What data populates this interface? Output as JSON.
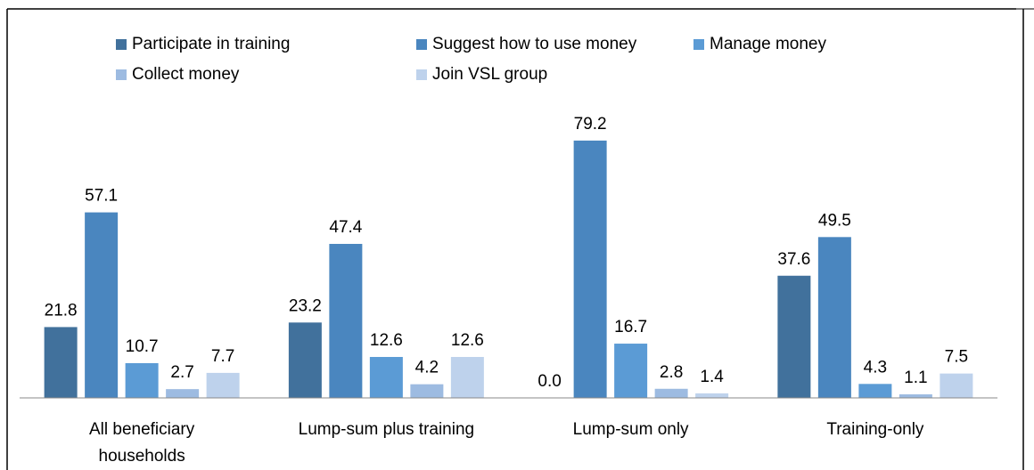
{
  "chart_data": {
    "type": "bar",
    "categories": [
      "All beneficiary households",
      "Lump-sum plus training",
      "Lump-sum only",
      "Training-only"
    ],
    "series": [
      {
        "name": "Participate in training",
        "color": "#41719c",
        "values": [
          21.8,
          23.2,
          0,
          37.6
        ],
        "value_labels": [
          "21.8",
          "23.2",
          "0.0",
          "37.6"
        ]
      },
      {
        "name": "Suggest how to use money",
        "color": "#4a86bf",
        "values": [
          57.1,
          47.4,
          79.2,
          49.5
        ],
        "value_labels": [
          "57.1",
          "47.4",
          "79.2",
          "49.5"
        ]
      },
      {
        "name": "Manage money",
        "color": "#5b9bd5",
        "values": [
          10.7,
          12.6,
          16.7,
          4.3
        ],
        "value_labels": [
          "10.7",
          "12.6",
          "16.7",
          "4.3"
        ]
      },
      {
        "name": "Collect money",
        "color": "#9dbbe1",
        "values": [
          2.7,
          4.2,
          2.8,
          1.1
        ],
        "value_labels": [
          "2.7",
          "4.2",
          "2.8",
          "1.1"
        ]
      },
      {
        "name": "Join VSL group",
        "color": "#bed2ec",
        "values": [
          7.7,
          12.6,
          1.4,
          7.5
        ],
        "value_labels": [
          "7.7",
          "12.6",
          "1.4",
          "7.5"
        ]
      }
    ],
    "ylim": [
      0,
      100
    ],
    "legend": "top"
  }
}
